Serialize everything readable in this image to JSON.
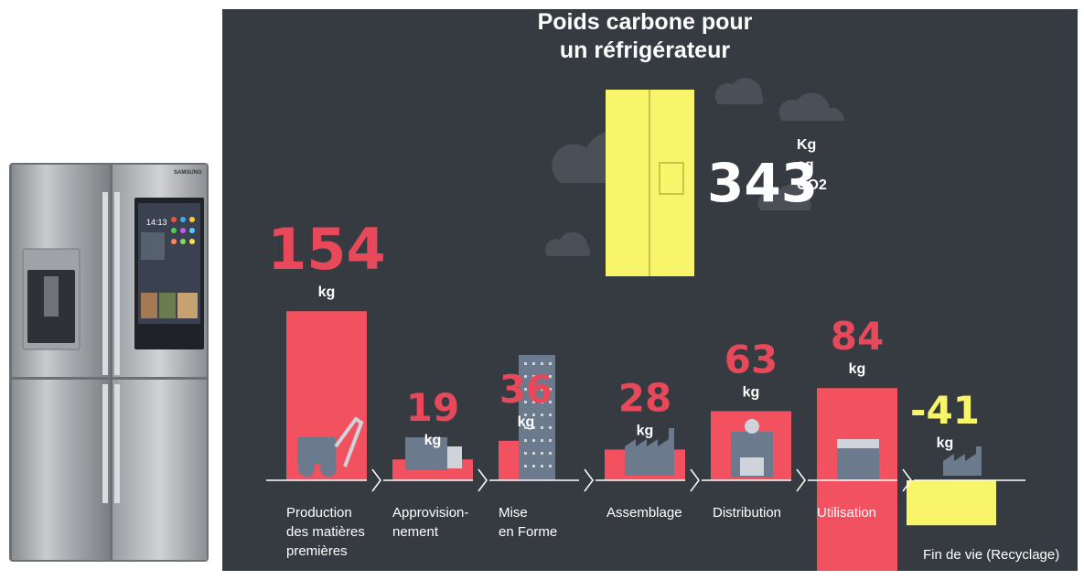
{
  "fridge_brand": "SAMSUNG",
  "fridge_screen_time": "14:13",
  "chart_data": {
    "type": "bar",
    "title": "Poids carbone pour un réfrigérateur",
    "title_lines": [
      "Poids carbone pour",
      "un réfrigérateur"
    ],
    "total": {
      "value": 343,
      "unit_lines": [
        "Kg",
        "eq",
        "CO2"
      ]
    },
    "unit": "kg",
    "categories": [
      {
        "label_lines": [
          "Production",
          "des matières",
          "premières"
        ],
        "value": 154,
        "value_label": "154"
      },
      {
        "label_lines": [
          "Approvision-",
          "nement"
        ],
        "value": 19,
        "value_label": "19"
      },
      {
        "label_lines": [
          "Mise",
          "en Forme"
        ],
        "value": 36,
        "value_label": "36"
      },
      {
        "label_lines": [
          "Assemblage"
        ],
        "value": 28,
        "value_label": "28"
      },
      {
        "label_lines": [
          "Distribution"
        ],
        "value": 63,
        "value_label": "63"
      },
      {
        "label_lines": [
          "Utilisation"
        ],
        "value": 84,
        "value_label": "84"
      },
      {
        "label_lines": [
          "Fin de vie (Recyclage)"
        ],
        "value": -41,
        "value_label": "-41"
      }
    ],
    "colors": {
      "background": "#363a41",
      "positive": "#f2525f",
      "negative": "#f9f56b",
      "value_text": "#e8495a",
      "icon": "#6b7a8c",
      "total_box": "#f9f56b"
    }
  }
}
